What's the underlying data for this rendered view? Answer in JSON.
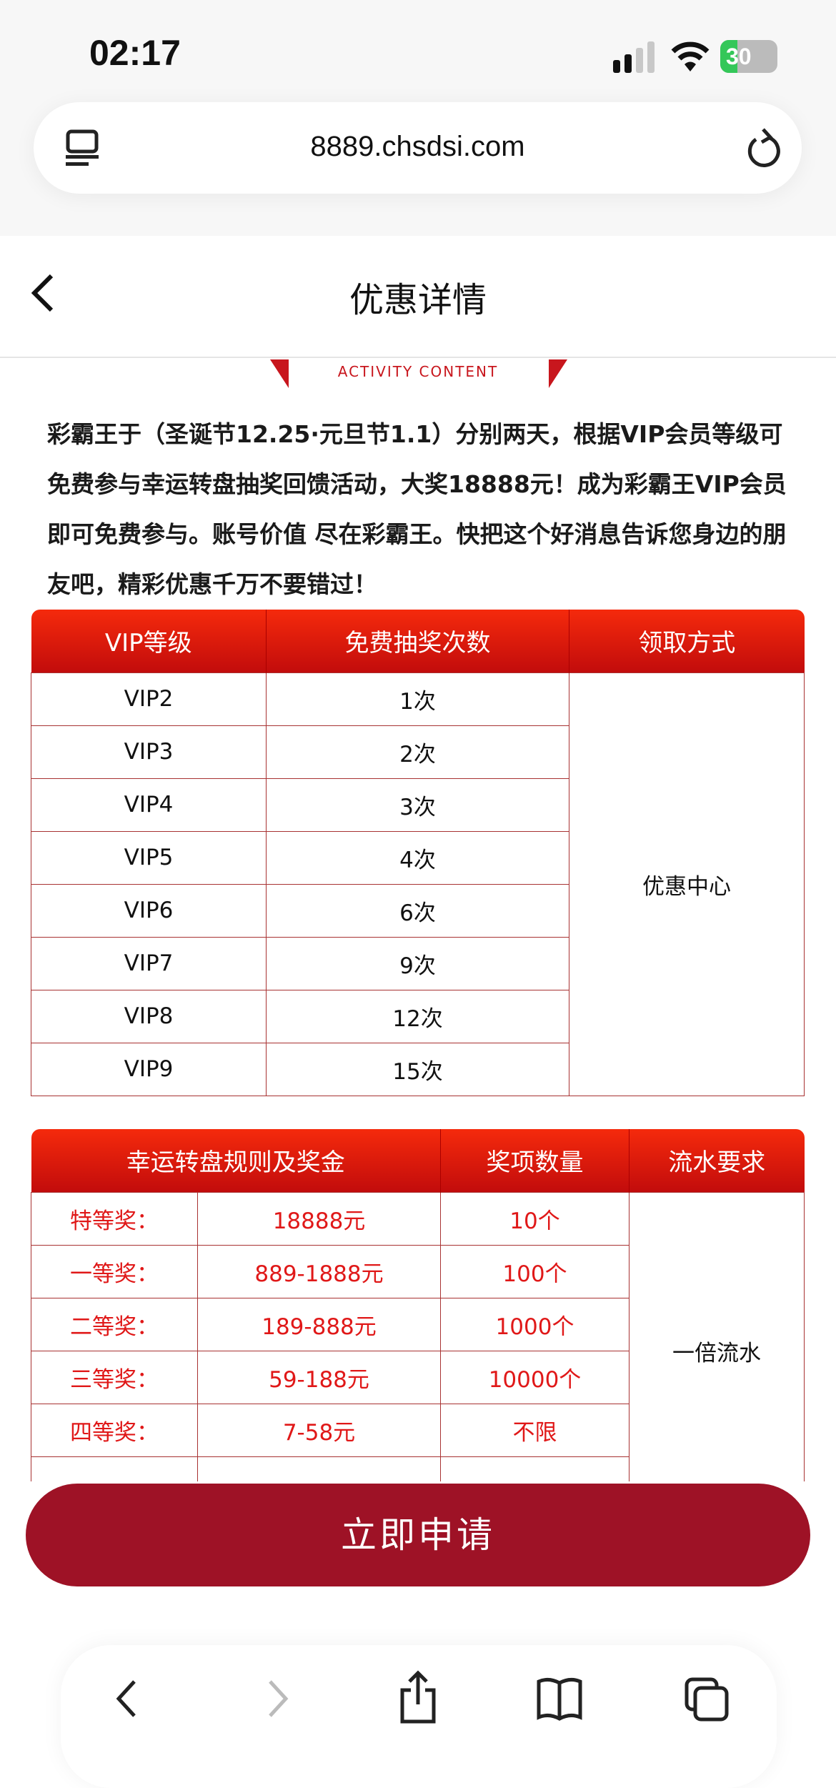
{
  "status_bar": {
    "time": "02:17",
    "battery": "30",
    "battery_level_percent": 30,
    "signal_bars": 2
  },
  "browser": {
    "url": "8889.chsdsi.com"
  },
  "header": {
    "title": "优惠详情"
  },
  "section": {
    "subtitle": "ACTIVITY CONTENT"
  },
  "description": "彩霸王于（圣诞节12.25·元旦节1.1）分别两天，根据VIP会员等级可免费参与幸运转盘抽奖回馈活动，大奖18888元！成为彩霸王VIP会员即可免费参与。账号价值 尽在彩霸王。快把这个好消息告诉您身边的朋友吧，精彩优惠千万不要错过！",
  "vip_table": {
    "headers": [
      "VIP等级",
      "免费抽奖次数",
      "领取方式"
    ],
    "rows": [
      [
        "VIP2",
        "1次"
      ],
      [
        "VIP3",
        "2次"
      ],
      [
        "VIP4",
        "3次"
      ],
      [
        "VIP5",
        "4次"
      ],
      [
        "VIP6",
        "6次"
      ],
      [
        "VIP7",
        "9次"
      ],
      [
        "VIP8",
        "12次"
      ],
      [
        "VIP9",
        "15次"
      ]
    ],
    "claim": "优惠中心"
  },
  "prize_table": {
    "headers": [
      "幸运转盘规则及奖金",
      "奖项数量",
      "流水要求"
    ],
    "rows": [
      [
        "特等奖：",
        "18888元",
        "10个"
      ],
      [
        "一等奖：",
        "889-1888元",
        "100个"
      ],
      [
        "二等奖：",
        "189-888元",
        "1000个"
      ],
      [
        "三等奖：",
        "59-188元",
        "10000个"
      ],
      [
        "四等奖：",
        "7-58元",
        "不限"
      ]
    ],
    "turnover": "一倍流水"
  },
  "apply_button": "立即申请",
  "colors": {
    "header_red": "#e8180c",
    "button": "#9e1226",
    "prize_text": "#e01818",
    "border": "#a83232"
  }
}
